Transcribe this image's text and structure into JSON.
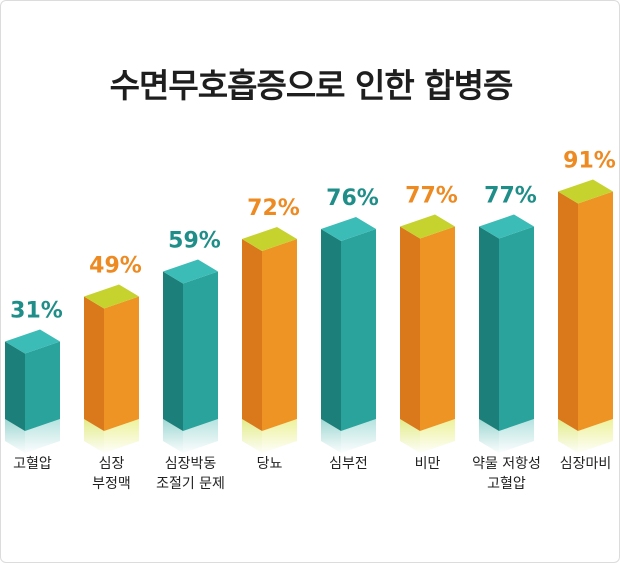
{
  "chart_data": {
    "type": "bar",
    "title": "수면무호흡증으로 인한 합병증",
    "unit": "%",
    "categories": [
      "고혈압",
      "심장\n부정맥",
      "심장박동\n조절기 문제",
      "당뇨",
      "심부전",
      "비만",
      "약물 저항성\n고혈압",
      "심장마비"
    ],
    "values": [
      31,
      49,
      59,
      72,
      76,
      77,
      77,
      91
    ],
    "value_labels": [
      "31%",
      "49%",
      "59%",
      "72%",
      "76%",
      "77%",
      "77%",
      "91%"
    ],
    "bar_colors": [
      "teal",
      "orange",
      "teal",
      "orange",
      "teal",
      "orange",
      "teal",
      "orange"
    ],
    "ylim": [
      0,
      100
    ],
    "grid": false
  },
  "colors": {
    "teal": {
      "front": "#2aa39d",
      "side": "#1d7f79",
      "top": "#3cbcb6",
      "label": "#1f8e89"
    },
    "orange": {
      "front": "#ee9424",
      "side": "#d9791b",
      "top": "#c6d32f",
      "label": "#ed8a22"
    }
  }
}
